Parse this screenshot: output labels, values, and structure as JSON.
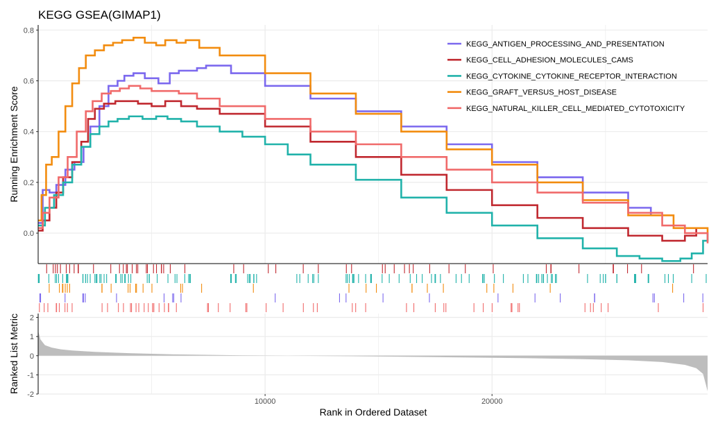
{
  "chart_data": {
    "type": "line",
    "title": "KEGG GSEA(GIMAP1)",
    "xlabel": "Rank in Ordered Dataset",
    "xlim": [
      0,
      29500
    ],
    "x_ticks": [
      10000,
      20000
    ],
    "x_tick_labels": [
      "10000",
      "20000"
    ],
    "panels": {
      "enrichment": {
        "ylabel": "Running Enrichment Score",
        "ylim": [
          -0.12,
          0.82
        ],
        "y_ticks": [
          0.0,
          0.2,
          0.4,
          0.6,
          0.8
        ],
        "y_tick_labels": [
          "0.0",
          "0.2",
          "0.4",
          "0.6",
          "0.8"
        ]
      },
      "ranked": {
        "ylabel": "Ranked List Metric",
        "ylim": [
          -2,
          2.2
        ],
        "y_ticks": [
          -2,
          -1,
          0,
          1,
          2
        ],
        "y_tick_labels": [
          "-2",
          "-1",
          "0",
          "1",
          "2"
        ]
      }
    },
    "grid": true,
    "legend_position": "top-right",
    "series": [
      {
        "name": "KEGG_ANTIGEN_PROCESSING_AND_PRESENTATION",
        "color": "#7B68EE",
        "x": [
          0,
          200,
          500,
          800,
          1200,
          1600,
          2000,
          2300,
          2700,
          3100,
          3500,
          3800,
          4200,
          4700,
          5300,
          5800,
          6200,
          6500,
          7000,
          7400,
          8500,
          10000,
          12000,
          14000,
          16000,
          18000,
          20000,
          22000,
          24000,
          26000,
          27000
        ],
        "y": [
          0.04,
          0.17,
          0.16,
          0.19,
          0.25,
          0.28,
          0.34,
          0.42,
          0.5,
          0.58,
          0.6,
          0.62,
          0.63,
          0.61,
          0.59,
          0.63,
          0.64,
          0.64,
          0.65,
          0.66,
          0.63,
          0.58,
          0.53,
          0.48,
          0.42,
          0.35,
          0.28,
          0.22,
          0.16,
          0.1,
          0.07
        ]
      },
      {
        "name": "KEGG_CELL_ADHESION_MOLECULES_CAMS",
        "color": "#C0282F",
        "x": [
          0,
          200,
          500,
          800,
          1100,
          1500,
          1900,
          2200,
          2500,
          2900,
          3400,
          3900,
          4400,
          5000,
          5600,
          6300,
          7000,
          8000,
          10000,
          12000,
          14000,
          16000,
          18000,
          20000,
          22000,
          24000,
          26000,
          27500,
          28500,
          29000
        ],
        "y": [
          0.01,
          0.05,
          0.1,
          0.16,
          0.22,
          0.28,
          0.36,
          0.45,
          0.49,
          0.51,
          0.52,
          0.52,
          0.51,
          0.5,
          0.52,
          0.5,
          0.49,
          0.47,
          0.42,
          0.36,
          0.3,
          0.23,
          0.17,
          0.11,
          0.06,
          0.02,
          -0.01,
          -0.03,
          -0.01,
          0.02
        ]
      },
      {
        "name": "KEGG_CYTOKINE_CYTOKINE_RECEPTOR_INTERACTION",
        "color": "#20B2AA",
        "x": [
          0,
          300,
          700,
          1100,
          1500,
          1900,
          2300,
          2700,
          3100,
          3500,
          4000,
          4600,
          5200,
          5700,
          6300,
          7000,
          8000,
          9000,
          10000,
          11000,
          12000,
          14000,
          16000,
          18000,
          20000,
          22000,
          24000,
          25500,
          26500,
          27500,
          28300,
          28800,
          29300,
          29500
        ],
        "y": [
          0.03,
          0.1,
          0.15,
          0.2,
          0.27,
          0.34,
          0.39,
          0.42,
          0.44,
          0.45,
          0.46,
          0.45,
          0.46,
          0.45,
          0.44,
          0.42,
          0.4,
          0.38,
          0.35,
          0.31,
          0.27,
          0.21,
          0.14,
          0.08,
          0.03,
          -0.02,
          -0.06,
          -0.09,
          -0.1,
          -0.11,
          -0.1,
          -0.08,
          -0.03,
          0.0
        ]
      },
      {
        "name": "KEGG_GRAFT_VERSUS_HOST_DISEASE",
        "color": "#F28C0F",
        "x": [
          0,
          150,
          350,
          600,
          900,
          1200,
          1500,
          1800,
          2100,
          2500,
          2900,
          3300,
          3700,
          4200,
          4700,
          5200,
          5600,
          6100,
          6500,
          7100,
          8000,
          10000,
          12000,
          14000,
          16000,
          18000,
          20000,
          22000,
          24000,
          26000,
          28000,
          29500
        ],
        "y": [
          0.05,
          0.15,
          0.27,
          0.3,
          0.4,
          0.5,
          0.59,
          0.65,
          0.7,
          0.72,
          0.74,
          0.75,
          0.76,
          0.77,
          0.75,
          0.74,
          0.76,
          0.75,
          0.76,
          0.73,
          0.7,
          0.63,
          0.55,
          0.47,
          0.4,
          0.33,
          0.27,
          0.2,
          0.13,
          0.07,
          0.02,
          0.0
        ]
      },
      {
        "name": "KEGG_NATURAL_KILLER_CELL_MEDIATED_CYTOTOXICITY",
        "color": "#F06A6A",
        "x": [
          0,
          200,
          500,
          900,
          1300,
          1700,
          2100,
          2400,
          2800,
          3200,
          3600,
          4000,
          4500,
          5000,
          5600,
          6200,
          7000,
          8000,
          10000,
          12000,
          14000,
          16000,
          18000,
          20000,
          22000,
          24000,
          26000,
          27500,
          28500,
          29500
        ],
        "y": [
          0.02,
          0.08,
          0.14,
          0.22,
          0.3,
          0.4,
          0.48,
          0.52,
          0.55,
          0.56,
          0.57,
          0.58,
          0.57,
          0.56,
          0.56,
          0.55,
          0.53,
          0.5,
          0.45,
          0.4,
          0.35,
          0.3,
          0.25,
          0.2,
          0.16,
          0.12,
          0.08,
          0.03,
          0.0,
          -0.04
        ]
      }
    ],
    "ranked_metric": {
      "x": [
        0,
        100,
        300,
        600,
        1000,
        1500,
        2500,
        4000,
        6000,
        9000,
        12000,
        15000,
        18000,
        21000,
        24000,
        26000,
        27500,
        28500,
        29000,
        29300,
        29500
      ],
      "y": [
        1.3,
        0.85,
        0.55,
        0.42,
        0.33,
        0.27,
        0.2,
        0.13,
        0.07,
        0.02,
        -0.01,
        -0.04,
        -0.08,
        -0.12,
        -0.18,
        -0.24,
        -0.33,
        -0.48,
        -0.65,
        -0.95,
        -1.85
      ]
    }
  }
}
